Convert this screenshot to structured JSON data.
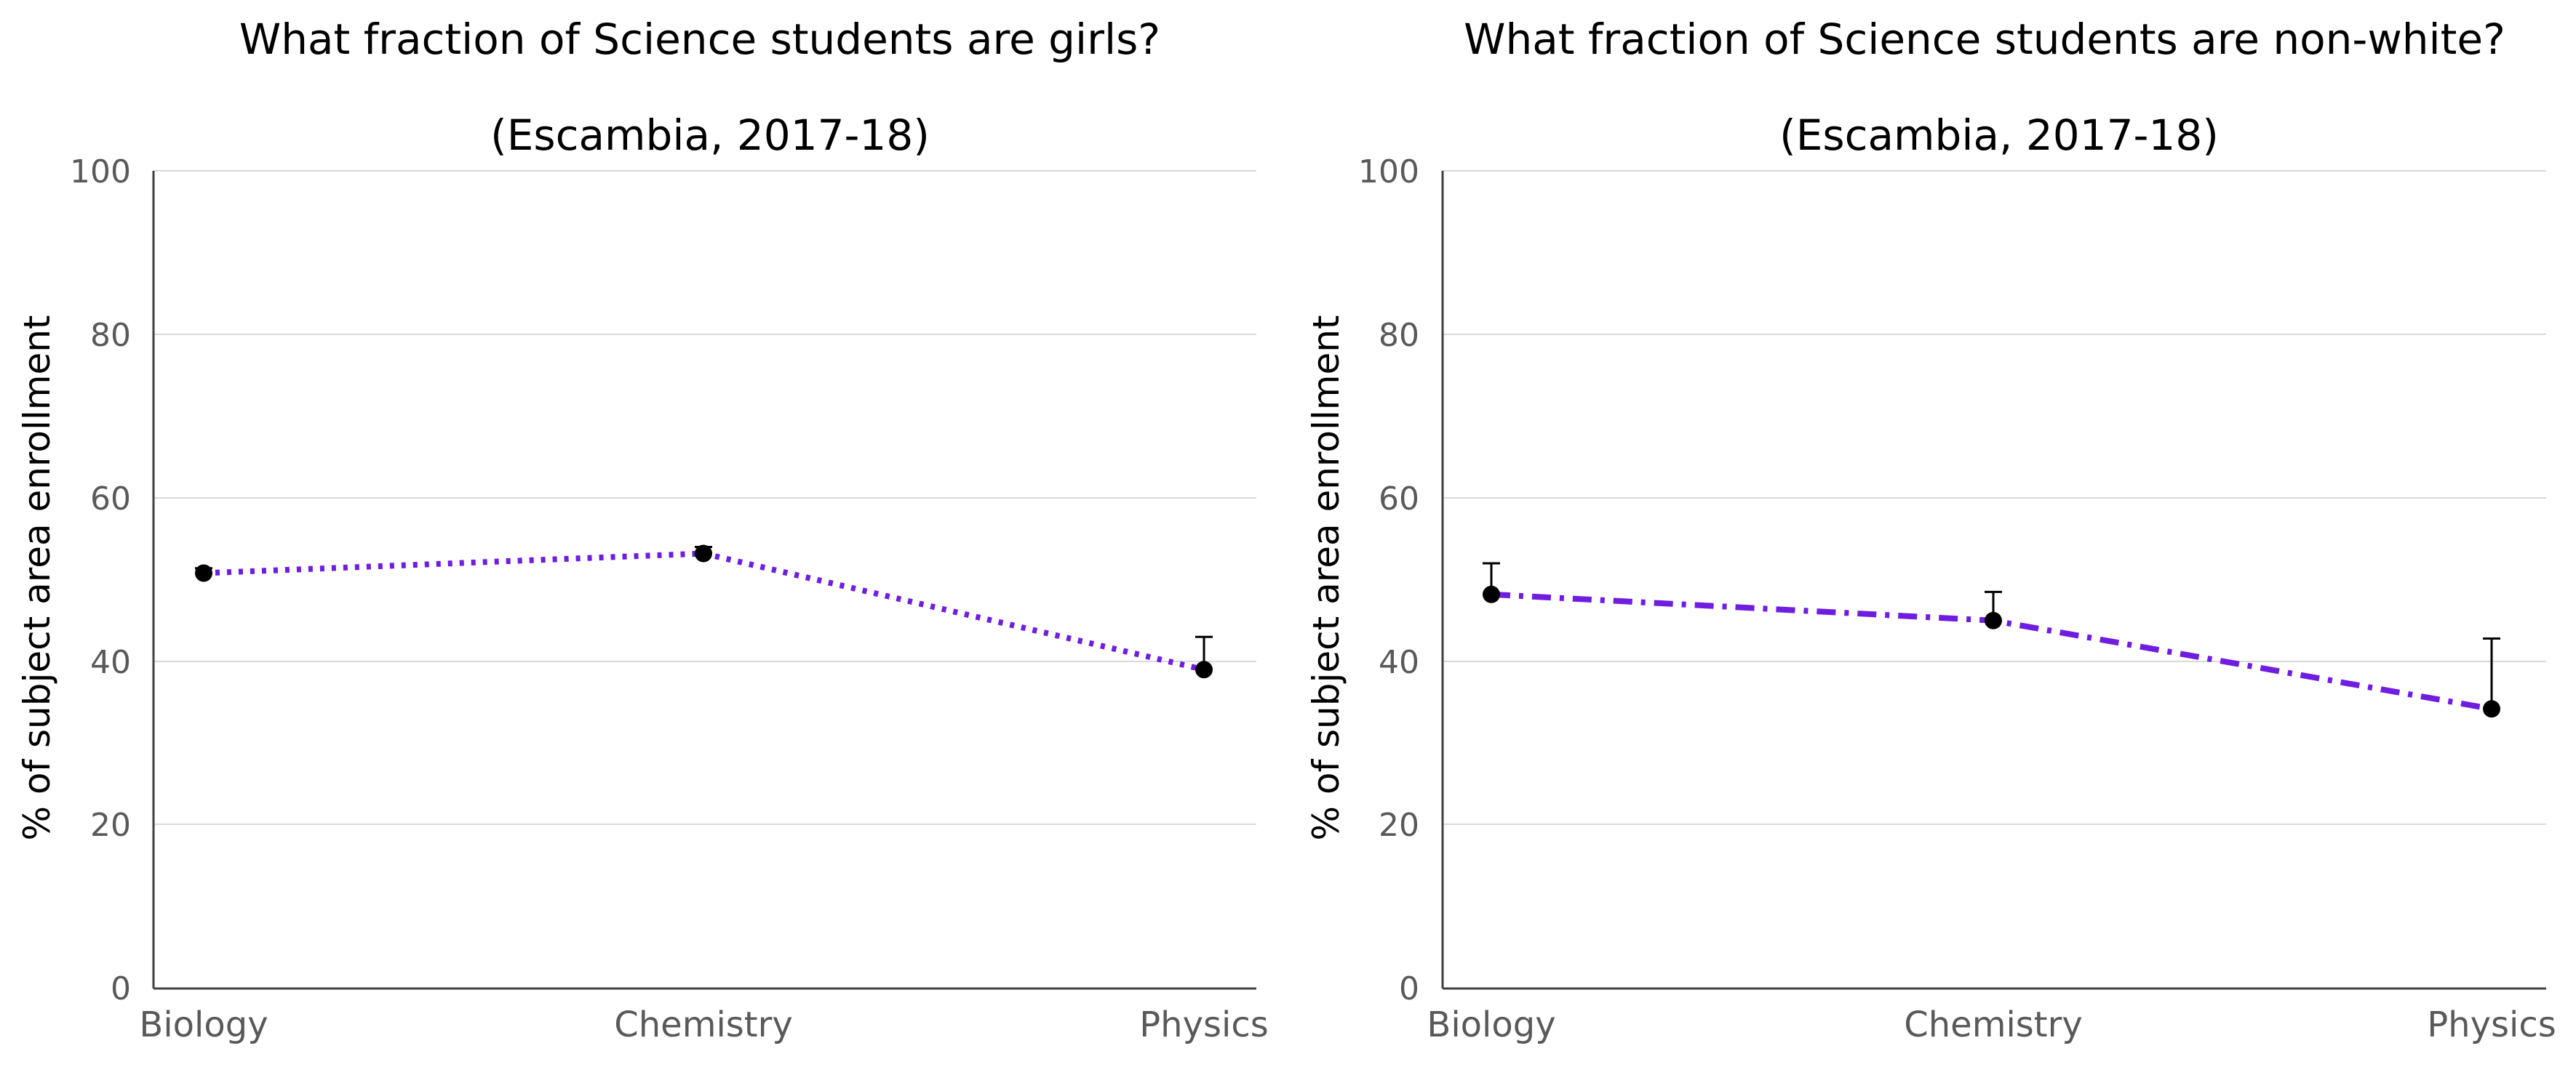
{
  "colors": {
    "line": "#6f1de0",
    "marker": "#000000",
    "grid": "#d9d9d9",
    "axis": "#404040",
    "tick_text": "#595959"
  },
  "chart_data": [
    {
      "type": "line",
      "title": "What fraction of Science students are girls?",
      "subtitle": "(Escambia, 2017-18)",
      "xlabel": "",
      "ylabel": "% of subject area enrollment",
      "categories": [
        "Biology",
        "Chemistry",
        "Physics"
      ],
      "ylim": [
        0,
        100
      ],
      "yticks": [
        "0",
        "20",
        "40",
        "60",
        "80",
        "100"
      ],
      "grid": true,
      "line_style": "dotted",
      "series": [
        {
          "values": [
            50.8,
            53.2,
            39.0
          ],
          "error_upper": [
            51.4,
            54.0,
            43.0
          ]
        }
      ]
    },
    {
      "type": "line",
      "title": "What fraction of Science students are non-white?",
      "subtitle": "(Escambia, 2017-18)",
      "xlabel": "",
      "ylabel": "% of subject area enrollment",
      "categories": [
        "Biology",
        "Chemistry",
        "Physics"
      ],
      "ylim": [
        0,
        100
      ],
      "yticks": [
        "0",
        "20",
        "40",
        "60",
        "80",
        "100"
      ],
      "grid": true,
      "line_style": "dash-dot",
      "series": [
        {
          "values": [
            48.2,
            45.0,
            34.2
          ],
          "error_upper": [
            52.0,
            48.5,
            42.8
          ]
        }
      ]
    }
  ]
}
